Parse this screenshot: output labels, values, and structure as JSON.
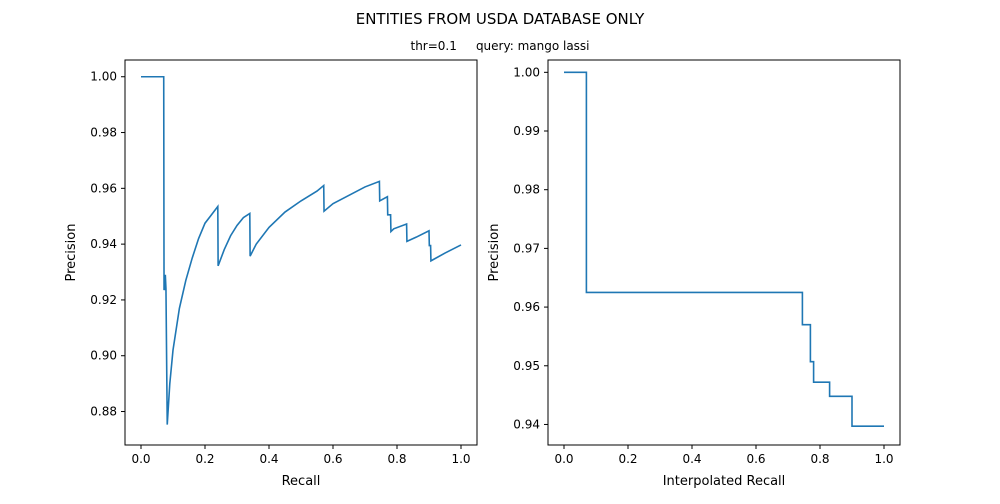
{
  "figure": {
    "title": "ENTITIES FROM USDA DATABASE ONLY",
    "subtitle": "thr=0.1     query: mango lassi"
  },
  "chart_data": [
    {
      "type": "line",
      "xlabel": "Recall",
      "ylabel": "Precision",
      "xlim": [
        -0.05,
        1.05
      ],
      "ylim": [
        0.868,
        1.006
      ],
      "xticks": [
        0.0,
        0.2,
        0.4,
        0.6,
        0.8,
        1.0
      ],
      "xtick_labels": [
        "0.0",
        "0.2",
        "0.4",
        "0.6",
        "0.8",
        "1.0"
      ],
      "yticks": [
        0.88,
        0.9,
        0.92,
        0.94,
        0.96,
        0.98,
        1.0
      ],
      "ytick_labels": [
        "0.88",
        "0.90",
        "0.92",
        "0.94",
        "0.96",
        "0.98",
        "1.00"
      ],
      "grid": false,
      "series": [
        {
          "color": "#1f77b4",
          "x": [
            0.0,
            0.02,
            0.04,
            0.06,
            0.071,
            0.072,
            0.073,
            0.075,
            0.076,
            0.078,
            0.082,
            0.09,
            0.1,
            0.12,
            0.14,
            0.16,
            0.18,
            0.2,
            0.22,
            0.24,
            0.241,
            0.26,
            0.28,
            0.3,
            0.32,
            0.34,
            0.341,
            0.36,
            0.4,
            0.45,
            0.5,
            0.55,
            0.571,
            0.572,
            0.6,
            0.65,
            0.7,
            0.745,
            0.746,
            0.77,
            0.771,
            0.78,
            0.781,
            0.79,
            0.83,
            0.831,
            0.86,
            0.9,
            0.901,
            0.905,
            0.906,
            0.95,
            1.0
          ],
          "y": [
            1.0,
            1.0,
            1.0,
            1.0,
            1.0,
            0.9235,
            0.9285,
            0.9235,
            0.929,
            0.924,
            0.8753,
            0.89,
            0.902,
            0.917,
            0.927,
            0.935,
            0.942,
            0.9475,
            0.9505,
            0.9535,
            0.9322,
            0.938,
            0.943,
            0.9467,
            0.9495,
            0.951,
            0.9357,
            0.94,
            0.946,
            0.9515,
            0.9555,
            0.959,
            0.961,
            0.9518,
            0.9545,
            0.9575,
            0.9605,
            0.9625,
            0.9555,
            0.957,
            0.9505,
            0.9505,
            0.9445,
            0.9455,
            0.9472,
            0.941,
            0.9425,
            0.9448,
            0.9395,
            0.9395,
            0.934,
            0.9368,
            0.9397
          ]
        }
      ]
    },
    {
      "type": "line",
      "xlabel": "Interpolated Recall",
      "ylabel": "Precision",
      "xlim": [
        -0.05,
        1.05
      ],
      "ylim": [
        0.9365,
        1.0021
      ],
      "xticks": [
        0.0,
        0.2,
        0.4,
        0.6,
        0.8,
        1.0
      ],
      "xtick_labels": [
        "0.0",
        "0.2",
        "0.4",
        "0.6",
        "0.8",
        "1.0"
      ],
      "yticks": [
        0.94,
        0.95,
        0.96,
        0.97,
        0.98,
        0.99,
        1.0
      ],
      "ytick_labels": [
        "0.94",
        "0.95",
        "0.96",
        "0.97",
        "0.98",
        "0.99",
        "1.00"
      ],
      "grid": false,
      "series": [
        {
          "color": "#1f77b4",
          "x": [
            0.0,
            0.07,
            0.07,
            0.745,
            0.745,
            0.77,
            0.77,
            0.78,
            0.78,
            0.83,
            0.83,
            0.9,
            0.9,
            1.0
          ],
          "y": [
            1.0,
            1.0,
            0.9625,
            0.9625,
            0.957,
            0.957,
            0.9507,
            0.9507,
            0.9472,
            0.9472,
            0.9448,
            0.9448,
            0.9397,
            0.9397
          ]
        }
      ]
    }
  ]
}
